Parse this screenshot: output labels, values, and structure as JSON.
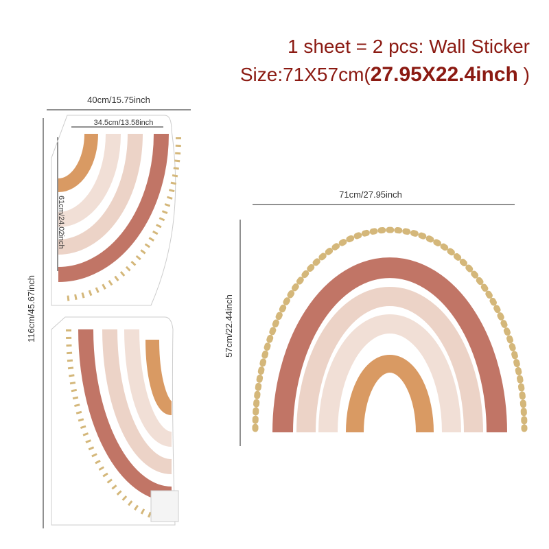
{
  "header": {
    "line1": "1 sheet = 2 pcs: Wall Sticker",
    "line2_prefix": "Size:71X57cm(",
    "line2_bold": "27.95X22.4inch",
    "line2_suffix": " )"
  },
  "sheet": {
    "width": "40cm/15.75inch",
    "piece_width": "34.5cm/13.58inch",
    "piece_height": "61cm/24.02inch",
    "height": "116cm/45.67inch"
  },
  "assembled": {
    "width": "71cm/27.95inch",
    "height": "57cm/22.44inch"
  }
}
